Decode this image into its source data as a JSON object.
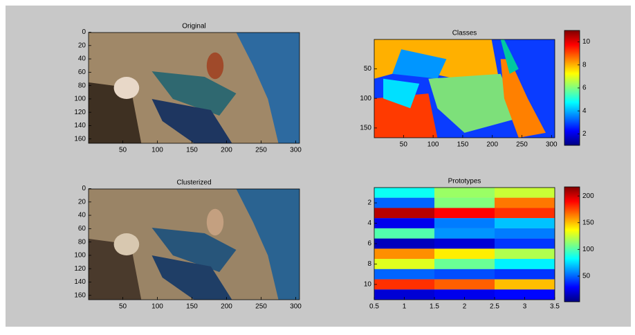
{
  "chart_data": [
    {
      "type": "image",
      "title": "Original",
      "xlim": [
        0.5,
        305.5
      ],
      "ylim": [
        0.5,
        166.5
      ],
      "xticks": [
        50,
        100,
        150,
        200,
        250,
        300
      ],
      "yticks": [
        0,
        20,
        40,
        60,
        80,
        100,
        120,
        140,
        160
      ]
    },
    {
      "type": "classmap",
      "title": "Classes",
      "xlim": [
        0.5,
        305.5
      ],
      "ylim": [
        0.5,
        166.5
      ],
      "xticks": [
        50,
        100,
        150,
        200,
        250,
        300
      ],
      "yticks": [
        50,
        100,
        150
      ],
      "clim": [
        1,
        11
      ],
      "colorbar_ticks": [
        2,
        4,
        6,
        8,
        10
      ]
    },
    {
      "type": "image",
      "title": "Clusterized",
      "xlim": [
        0.5,
        305.5
      ],
      "ylim": [
        0.5,
        166.5
      ],
      "xticks": [
        50,
        100,
        150,
        200,
        250,
        300
      ],
      "yticks": [
        0,
        20,
        40,
        60,
        80,
        100,
        120,
        140,
        160
      ]
    },
    {
      "type": "heatmap",
      "title": "Prototypes",
      "xlim": [
        0.5,
        3.5
      ],
      "ylim": [
        0.5,
        11.5
      ],
      "xticks": [
        0.5,
        1,
        1.5,
        2,
        2.5,
        3,
        3.5
      ],
      "yticks": [
        2,
        4,
        6,
        8,
        10
      ],
      "clim": [
        2,
        217
      ],
      "colorbar_ticks": [
        50,
        100,
        150,
        200
      ],
      "values": [
        [
          85,
          115,
          125
        ],
        [
          50,
          110,
          165
        ],
        [
          205,
          190,
          180
        ],
        [
          25,
          55,
          70
        ],
        [
          100,
          60,
          55
        ],
        [
          15,
          20,
          40
        ],
        [
          160,
          140,
          120
        ],
        [
          130,
          105,
          80
        ],
        [
          50,
          45,
          40
        ],
        [
          180,
          170,
          150
        ],
        [
          20,
          25,
          30
        ]
      ]
    }
  ]
}
